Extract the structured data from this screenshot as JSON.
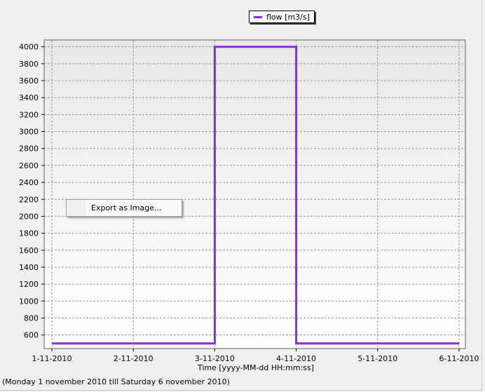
{
  "chart_data": {
    "type": "line",
    "step": true,
    "xlabel": "Time [yyyy-MM-dd HH:mm:ss]",
    "ylabel": "",
    "x_ticks": [
      "1-11-2010",
      "2-11-2010",
      "3-11-2010",
      "4-11-2010",
      "5-11-2010",
      "6-11-2010"
    ],
    "y_ticks": [
      600,
      800,
      1000,
      1200,
      1400,
      1600,
      1800,
      2000,
      2200,
      2400,
      2600,
      2800,
      3000,
      3200,
      3400,
      3600,
      3800,
      4000
    ],
    "xlim": [
      "2010-11-01",
      "2010-11-06"
    ],
    "ylim": [
      440,
      4080
    ],
    "grid": true,
    "legend_position": "top-center",
    "series": [
      {
        "name": "flow [m3/s]",
        "color": "#8a2be2",
        "points": [
          {
            "x": "2010-11-01",
            "y": 500
          },
          {
            "x": "2010-11-03",
            "y": 500
          },
          {
            "x": "2010-11-03",
            "y": 4000
          },
          {
            "x": "2010-11-04",
            "y": 4000
          },
          {
            "x": "2010-11-04",
            "y": 500
          },
          {
            "x": "2010-11-06",
            "y": 500
          }
        ]
      }
    ],
    "subtitle": "(Monday 1 november 2010 till Saturday 6 november 2010)"
  },
  "context_menu": {
    "export_label": "Export as Image..."
  }
}
